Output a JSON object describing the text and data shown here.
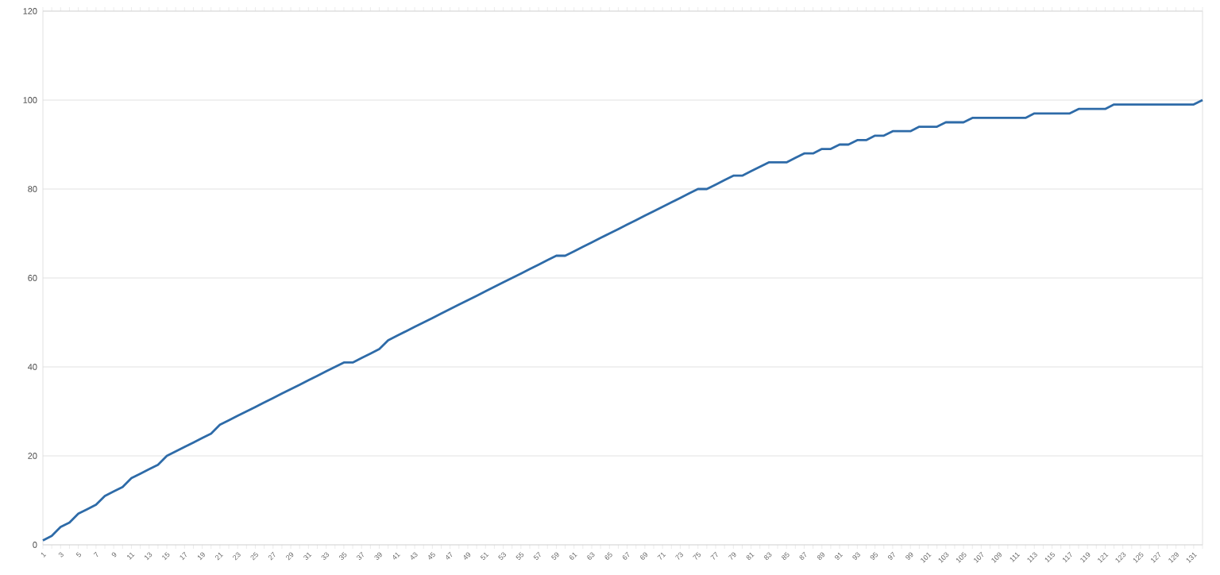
{
  "chart_data": {
    "type": "line",
    "categories": [
      "1",
      null,
      "3",
      null,
      "5",
      null,
      "7",
      null,
      "9",
      null,
      "11",
      null,
      "13",
      null,
      "15",
      null,
      "17",
      null,
      "19",
      null,
      "21",
      null,
      "23",
      null,
      "25",
      null,
      "27",
      null,
      "29",
      null,
      "31",
      null,
      "33",
      null,
      "35",
      null,
      "37",
      null,
      "39",
      null,
      "41",
      null,
      "43",
      null,
      "45",
      null,
      "47",
      null,
      "49",
      null,
      "51",
      null,
      "53",
      null,
      "55",
      null,
      "57",
      null,
      "59",
      null,
      "61",
      null,
      "63",
      null,
      "65",
      null,
      "67",
      null,
      "69",
      null,
      "71",
      null,
      "73",
      null,
      "75",
      null,
      "77",
      null,
      "79",
      null,
      "81",
      null,
      "83",
      null,
      "85",
      null,
      "87",
      null,
      "89",
      null,
      "91",
      null,
      "93",
      null,
      "95",
      null,
      "97",
      null,
      "99",
      null,
      "101",
      null,
      "103",
      null,
      "105",
      null,
      "107",
      null,
      "109",
      null,
      "111",
      null,
      "113",
      null,
      "115",
      null,
      "117",
      null,
      "119",
      null,
      "121",
      null,
      "123",
      null,
      "125",
      null,
      "127",
      null,
      "129",
      null,
      "131",
      null
    ],
    "series": [
      {
        "color": "#2e6ba8",
        "values": [
          1,
          2,
          4,
          5,
          7,
          8,
          9,
          11,
          12,
          13,
          15,
          16,
          17,
          18,
          20,
          21,
          22,
          23,
          24,
          25,
          27,
          28,
          29,
          30,
          31,
          32,
          33,
          34,
          35,
          36,
          37,
          38,
          39,
          40,
          41,
          41,
          42,
          43,
          44,
          46,
          47,
          48,
          49,
          50,
          51,
          52,
          53,
          54,
          55,
          56,
          57,
          58,
          59,
          60,
          61,
          62,
          63,
          64,
          65,
          65,
          66,
          67,
          68,
          69,
          70,
          71,
          72,
          73,
          74,
          75,
          76,
          77,
          78,
          79,
          80,
          80,
          81,
          82,
          83,
          83,
          84,
          85,
          86,
          86,
          86,
          87,
          88,
          88,
          89,
          89,
          90,
          90,
          91,
          91,
          92,
          92,
          93,
          93,
          93,
          94,
          94,
          94,
          95,
          95,
          95,
          96,
          96,
          96,
          96,
          96,
          96,
          96,
          97,
          97,
          97,
          97,
          97,
          98,
          98,
          98,
          98,
          99,
          99,
          99,
          99,
          99,
          99,
          99,
          99,
          99,
          99,
          100
        ]
      }
    ],
    "ylim": [
      0,
      120
    ],
    "yticks": [
      0,
      20,
      40,
      60,
      80,
      100,
      120
    ],
    "grid": "y",
    "marker": "none",
    "line_style": "solid"
  }
}
